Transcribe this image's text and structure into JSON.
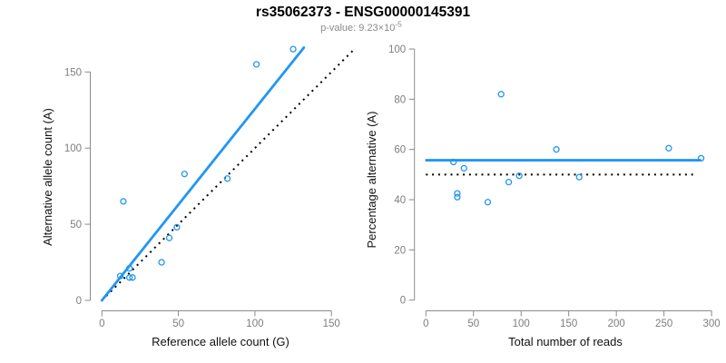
{
  "header": {
    "title": "rs35062373 - ENSG00000145391",
    "subtitle_main": "p-value: 9.23×10",
    "subtitle_exp": "-5"
  },
  "colors": {
    "accent_blue": "#2196F3",
    "reference_black": "#000000",
    "axis_gray": "#8a8a8a",
    "tick_label_gray": "#7e7e7e",
    "title_black": "#000000",
    "subtitle_gray": "#8a8a8a"
  },
  "chart_data": [
    {
      "id": "ref-vs-alt",
      "type": "scatter",
      "xlabel": "Reference allele count (G)",
      "ylabel": "Alternative allele count (A)",
      "xlim": [
        0,
        157
      ],
      "ylim": [
        0,
        166
      ],
      "xticks": [
        0,
        50,
        100,
        150
      ],
      "yticks": [
        0,
        50,
        100,
        150
      ],
      "grid": false,
      "legend": "none",
      "marker": "open-circle",
      "points": [
        [
          12,
          16
        ],
        [
          14,
          65
        ],
        [
          18,
          15
        ],
        [
          18,
          21
        ],
        [
          20,
          15
        ],
        [
          39,
          25
        ],
        [
          44,
          41
        ],
        [
          49,
          48
        ],
        [
          54,
          83
        ],
        [
          82,
          80
        ],
        [
          101,
          155
        ],
        [
          125,
          165
        ]
      ],
      "fit_line": {
        "style": "solid",
        "x1": 0,
        "y1": 0,
        "x2": 132,
        "y2": 166
      },
      "reference_line": {
        "style": "dotted",
        "x1": 0,
        "y1": 0,
        "x2": 164,
        "y2": 164
      }
    },
    {
      "id": "reads-vs-percentage",
      "type": "scatter",
      "xlabel": "Total number of reads",
      "ylabel": "Percentage alternative (A)",
      "xlim": [
        0,
        300
      ],
      "ylim": [
        0,
        100
      ],
      "xticks": [
        0,
        50,
        100,
        150,
        200,
        250,
        300
      ],
      "yticks": [
        0,
        20,
        40,
        60,
        80,
        100
      ],
      "grid": false,
      "legend": "none",
      "marker": "open-circle",
      "points": [
        [
          29,
          55
        ],
        [
          33,
          42.5
        ],
        [
          33,
          41
        ],
        [
          40,
          52.5
        ],
        [
          65,
          39
        ],
        [
          79,
          82
        ],
        [
          87,
          47
        ],
        [
          98,
          49.5
        ],
        [
          137,
          60
        ],
        [
          161,
          49
        ],
        [
          255,
          60.5
        ],
        [
          289,
          56.5
        ]
      ],
      "fit_line": {
        "style": "solid",
        "x1": 0.5,
        "y1": 55.7,
        "x2": 288,
        "y2": 55.7
      },
      "reference_line": {
        "style": "dotted",
        "x1": 0,
        "y1": 50,
        "x2": 283,
        "y2": 50
      }
    }
  ]
}
